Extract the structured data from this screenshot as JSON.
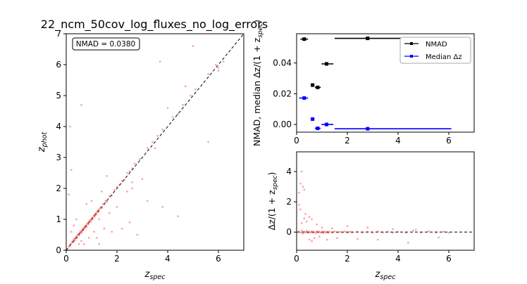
{
  "figure": {
    "title": "22_ncm_50cov_log_fluxes_no_log_errors"
  },
  "chart_data": [
    {
      "id": "main",
      "type": "scatter",
      "xlabel_base": "z",
      "xlabel_sub": "spec",
      "ylabel_base": "z",
      "ylabel_sub": "phot",
      "xlim": [
        0,
        7
      ],
      "ylim": [
        0,
        7
      ],
      "xticks": [
        0,
        2,
        4,
        6
      ],
      "yticks": [
        0,
        1,
        2,
        3,
        4,
        5,
        6,
        7
      ],
      "annotation": "NMAD = 0.0380",
      "reference_line": {
        "style": "dashed",
        "points": [
          [
            0,
            0
          ],
          [
            7,
            7
          ]
        ]
      },
      "marker_color": "#ff0000",
      "points": [
        [
          0.1,
          0.12
        ],
        [
          0.14,
          0.17
        ],
        [
          0.18,
          0.2
        ],
        [
          0.22,
          0.25
        ],
        [
          0.25,
          0.3
        ],
        [
          0.28,
          0.27
        ],
        [
          0.3,
          0.35
        ],
        [
          0.33,
          0.38
        ],
        [
          0.35,
          0.33
        ],
        [
          0.38,
          0.42
        ],
        [
          0.4,
          0.45
        ],
        [
          0.42,
          0.4
        ],
        [
          0.45,
          0.5
        ],
        [
          0.47,
          0.52
        ],
        [
          0.5,
          0.48
        ],
        [
          0.52,
          0.55
        ],
        [
          0.55,
          0.58
        ],
        [
          0.57,
          0.6
        ],
        [
          0.6,
          0.62
        ],
        [
          0.62,
          0.57
        ],
        [
          0.64,
          0.66
        ],
        [
          0.66,
          0.7
        ],
        [
          0.68,
          0.65
        ],
        [
          0.7,
          0.72
        ],
        [
          0.72,
          0.75
        ],
        [
          0.74,
          0.71
        ],
        [
          0.76,
          0.78
        ],
        [
          0.78,
          0.8
        ],
        [
          0.8,
          0.76
        ],
        [
          0.82,
          0.85
        ],
        [
          0.85,
          0.88
        ],
        [
          0.88,
          0.84
        ],
        [
          0.9,
          0.92
        ],
        [
          0.92,
          0.95
        ],
        [
          0.95,
          0.98
        ],
        [
          0.98,
          0.93
        ],
        [
          1.0,
          1.02
        ],
        [
          1.03,
          1.06
        ],
        [
          1.05,
          1.0
        ],
        [
          1.08,
          1.1
        ],
        [
          1.1,
          1.14
        ],
        [
          1.12,
          1.08
        ],
        [
          1.15,
          1.18
        ],
        [
          1.18,
          1.22
        ],
        [
          1.2,
          1.16
        ],
        [
          1.23,
          1.25
        ],
        [
          1.25,
          1.28
        ],
        [
          1.28,
          1.24
        ],
        [
          1.3,
          1.33
        ],
        [
          1.35,
          1.38
        ],
        [
          1.4,
          1.36
        ],
        [
          1.45,
          1.5
        ],
        [
          1.5,
          1.48
        ],
        [
          1.55,
          1.6
        ],
        [
          1.6,
          1.57
        ],
        [
          1.7,
          1.75
        ],
        [
          1.8,
          1.78
        ],
        [
          1.9,
          1.95
        ],
        [
          2.0,
          2.05
        ],
        [
          2.1,
          2.12
        ],
        [
          2.2,
          2.25
        ],
        [
          2.3,
          2.28
        ],
        [
          2.4,
          2.5
        ],
        [
          2.5,
          2.55
        ],
        [
          2.6,
          2.65
        ],
        [
          2.7,
          2.8
        ],
        [
          2.9,
          2.95
        ],
        [
          3.2,
          3.3
        ],
        [
          3.4,
          3.5
        ],
        [
          3.6,
          3.7
        ],
        [
          3.8,
          3.9
        ],
        [
          4.2,
          4.3
        ],
        [
          4.4,
          4.4
        ],
        [
          4.6,
          4.7
        ],
        [
          4.9,
          5.0
        ],
        [
          5.1,
          5.2
        ],
        [
          5.6,
          5.7
        ],
        [
          5.9,
          6.0
        ],
        [
          6.0,
          5.9
        ],
        [
          6.2,
          6.1
        ],
        [
          0.2,
          0.6
        ],
        [
          0.3,
          0.8
        ],
        [
          0.4,
          1.0
        ],
        [
          0.5,
          0.2
        ],
        [
          0.6,
          0.3
        ],
        [
          0.7,
          0.2
        ],
        [
          0.8,
          1.5
        ],
        [
          0.9,
          0.4
        ],
        [
          1.0,
          1.6
        ],
        [
          1.1,
          0.6
        ],
        [
          1.2,
          0.4
        ],
        [
          1.3,
          0.2
        ],
        [
          1.4,
          1.9
        ],
        [
          1.5,
          0.7
        ],
        [
          1.6,
          2.4
        ],
        [
          1.7,
          1.2
        ],
        [
          1.8,
          0.6
        ],
        [
          2.0,
          1.4
        ],
        [
          2.2,
          0.7
        ],
        [
          2.4,
          1.9
        ],
        [
          2.5,
          0.9
        ],
        [
          2.6,
          2.0
        ],
        [
          2.8,
          0.5
        ],
        [
          3.0,
          2.3
        ],
        [
          3.2,
          1.6
        ],
        [
          3.5,
          3.3
        ],
        [
          3.8,
          1.4
        ],
        [
          4.0,
          4.6
        ],
        [
          4.4,
          1.1
        ],
        [
          4.7,
          5.3
        ],
        [
          5.0,
          6.6
        ],
        [
          5.6,
          3.5
        ],
        [
          6.0,
          5.8
        ],
        [
          0.1,
          1.8
        ],
        [
          0.2,
          2.6
        ],
        [
          0.15,
          4.0
        ],
        [
          0.6,
          4.7
        ],
        [
          1.3,
          1.0
        ],
        [
          2.6,
          2.2
        ],
        [
          3.7,
          6.1
        ]
      ]
    },
    {
      "id": "stats",
      "type": "errorbar",
      "xlabel": "",
      "ylabel": "NMAD, median Δz/(1 + z",
      "ylabel_sub": "spec",
      "ylabel_tail": ")",
      "xlim": [
        0,
        7
      ],
      "ylim": [
        -0.005,
        0.059
      ],
      "xticks": [
        0,
        2,
        4,
        6
      ],
      "yticks": [
        0.0,
        0.02,
        0.04
      ],
      "ytick_labels": [
        "0.00",
        "0.02",
        "0.04"
      ],
      "legend": {
        "location": "upper right",
        "entries": [
          "NMAD",
          "Median Δz"
        ]
      },
      "series": [
        {
          "name": "NMAD",
          "color": "#000000",
          "points": [
            {
              "x": 0.3,
              "y": 0.0555,
              "xlo": 0.15,
              "xhi": 0.45
            },
            {
              "x": 0.63,
              "y": 0.0256,
              "xlo": 0.56,
              "xhi": 0.7
            },
            {
              "x": 0.83,
              "y": 0.0241,
              "xlo": 0.72,
              "xhi": 0.95
            },
            {
              "x": 1.18,
              "y": 0.0394,
              "xlo": 0.98,
              "xhi": 1.45
            },
            {
              "x": 2.8,
              "y": 0.056,
              "xlo": 1.5,
              "xhi": 6.1
            }
          ]
        },
        {
          "name": "Median Δz",
          "color": "#0000ff",
          "points": [
            {
              "x": 0.3,
              "y": 0.0172,
              "xlo": 0.1,
              "xhi": 0.45
            },
            {
              "x": 0.63,
              "y": 0.0035,
              "xlo": 0.56,
              "xhi": 0.7
            },
            {
              "x": 0.83,
              "y": -0.0025,
              "xlo": 0.72,
              "xhi": 0.95
            },
            {
              "x": 1.18,
              "y": 0.0,
              "xlo": 0.98,
              "xhi": 1.45
            },
            {
              "x": 2.8,
              "y": -0.0028,
              "xlo": 1.5,
              "xhi": 6.1
            }
          ]
        }
      ]
    },
    {
      "id": "residuals",
      "type": "scatter",
      "xlabel_base": "z",
      "xlabel_sub": "spec",
      "ylabel": "Δz/(1 + z",
      "ylabel_sub": "spec",
      "ylabel_tail": ")",
      "xlim": [
        0,
        7
      ],
      "ylim": [
        -1.2,
        5.3
      ],
      "xticks": [
        0,
        2,
        4,
        6
      ],
      "yticks": [
        0,
        2,
        4
      ],
      "reference_line": {
        "style": "dashed",
        "y": 0
      },
      "marker_color": "#ff0000",
      "points": [
        [
          0.1,
          0.05
        ],
        [
          0.15,
          -0.05
        ],
        [
          0.2,
          0.1
        ],
        [
          0.25,
          -0.1
        ],
        [
          0.3,
          0.03
        ],
        [
          0.35,
          -0.02
        ],
        [
          0.4,
          0.08
        ],
        [
          0.45,
          -0.06
        ],
        [
          0.5,
          0.02
        ],
        [
          0.55,
          -0.03
        ],
        [
          0.6,
          0.05
        ],
        [
          0.65,
          -0.04
        ],
        [
          0.7,
          0.01
        ],
        [
          0.75,
          -0.08
        ],
        [
          0.8,
          0.06
        ],
        [
          0.85,
          -0.02
        ],
        [
          0.9,
          0.03
        ],
        [
          0.95,
          -0.05
        ],
        [
          1.0,
          0.02
        ],
        [
          1.05,
          -0.07
        ],
        [
          1.1,
          0.04
        ],
        [
          1.15,
          -0.03
        ],
        [
          1.2,
          0.01
        ],
        [
          1.25,
          -0.05
        ],
        [
          1.3,
          0.03
        ],
        [
          1.4,
          -0.04
        ],
        [
          1.5,
          0.05
        ],
        [
          1.6,
          -0.02
        ],
        [
          1.7,
          0.02
        ],
        [
          1.8,
          -0.03
        ],
        [
          1.9,
          0.04
        ],
        [
          2.0,
          -0.05
        ],
        [
          2.1,
          0.02
        ],
        [
          2.2,
          -0.02
        ],
        [
          2.4,
          0.03
        ],
        [
          2.6,
          -0.04
        ],
        [
          2.8,
          0.02
        ],
        [
          3.0,
          -0.03
        ],
        [
          3.2,
          0.05
        ],
        [
          3.4,
          -0.02
        ],
        [
          3.6,
          0.03
        ],
        [
          3.8,
          -0.05
        ],
        [
          4.0,
          0.02
        ],
        [
          4.3,
          -0.06
        ],
        [
          4.6,
          0.1
        ],
        [
          4.9,
          -0.04
        ],
        [
          5.2,
          0.06
        ],
        [
          5.5,
          -0.03
        ],
        [
          5.8,
          0.04
        ],
        [
          6.0,
          -0.05
        ],
        [
          0.2,
          0.6
        ],
        [
          0.3,
          0.9
        ],
        [
          0.4,
          0.7
        ],
        [
          0.5,
          -0.5
        ],
        [
          0.6,
          -0.6
        ],
        [
          0.7,
          -0.4
        ],
        [
          0.8,
          0.5
        ],
        [
          0.9,
          -0.3
        ],
        [
          1.0,
          0.3
        ],
        [
          1.2,
          -0.5
        ],
        [
          1.4,
          0.25
        ],
        [
          1.6,
          -0.4
        ],
        [
          2.0,
          0.4
        ],
        [
          2.4,
          -0.45
        ],
        [
          2.8,
          0.3
        ],
        [
          3.2,
          -0.5
        ],
        [
          3.8,
          0.2
        ],
        [
          4.4,
          -0.7
        ],
        [
          4.7,
          0.15
        ],
        [
          5.6,
          -0.35
        ],
        [
          0.1,
          1.8
        ],
        [
          0.15,
          1.5
        ],
        [
          0.1,
          2.6
        ],
        [
          0.15,
          3.2
        ],
        [
          0.2,
          4.0
        ],
        [
          0.25,
          3.0
        ],
        [
          0.3,
          2.8
        ],
        [
          0.35,
          1.2
        ],
        [
          0.5,
          1.0
        ],
        [
          0.6,
          0.85
        ]
      ]
    }
  ]
}
